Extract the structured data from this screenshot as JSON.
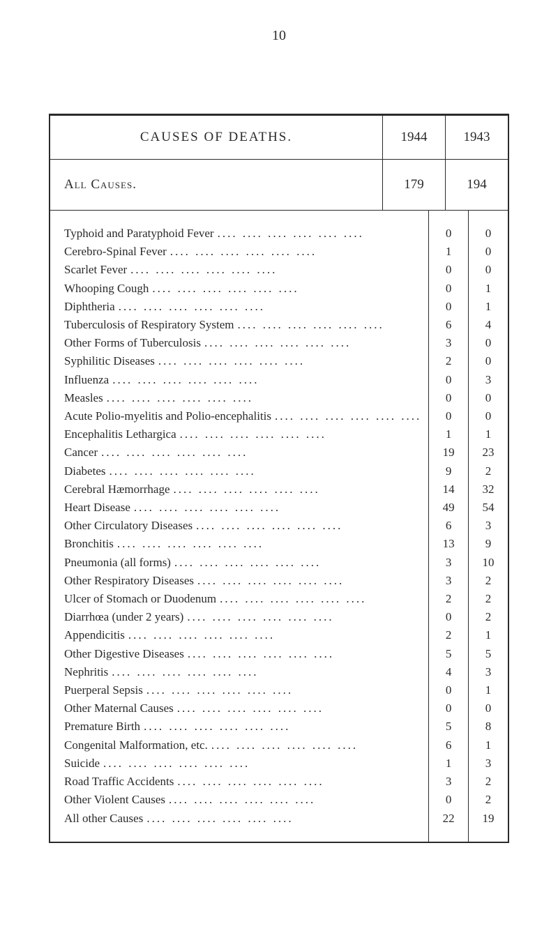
{
  "page_number": "10",
  "table": {
    "header_main": "CAUSES OF DEATHS.",
    "year1": "1944",
    "year2": "1943",
    "all_causes_label": "All Causes.",
    "all_causes_val1": "179",
    "all_causes_val2": "194",
    "rows": [
      {
        "label": "Typhoid and Paratyphoid Fever",
        "val1": "0",
        "val2": "0"
      },
      {
        "label": "Cerebro-Spinal Fever",
        "val1": "1",
        "val2": "0"
      },
      {
        "label": "Scarlet Fever",
        "val1": "0",
        "val2": "0"
      },
      {
        "label": "Whooping Cough",
        "val1": "0",
        "val2": "1"
      },
      {
        "label": "Diphtheria",
        "val1": "0",
        "val2": "1"
      },
      {
        "label": "Tuberculosis of Respiratory System",
        "val1": "6",
        "val2": "4"
      },
      {
        "label": "Other Forms of Tuberculosis",
        "val1": "3",
        "val2": "0"
      },
      {
        "label": "Syphilitic Diseases",
        "val1": "2",
        "val2": "0"
      },
      {
        "label": "Influenza",
        "val1": "0",
        "val2": "3"
      },
      {
        "label": "Measles",
        "val1": "0",
        "val2": "0"
      },
      {
        "label": "Acute Polio-myelitis and Polio-encephalitis",
        "val1": "0",
        "val2": "0"
      },
      {
        "label": "Encephalitis Lethargica",
        "val1": "1",
        "val2": "1"
      },
      {
        "label": "Cancer",
        "val1": "19",
        "val2": "23"
      },
      {
        "label": "Diabetes",
        "val1": "9",
        "val2": "2"
      },
      {
        "label": "Cerebral Hæmorrhage",
        "val1": "14",
        "val2": "32"
      },
      {
        "label": "Heart Disease",
        "val1": "49",
        "val2": "54"
      },
      {
        "label": "Other Circulatory Diseases",
        "val1": "6",
        "val2": "3"
      },
      {
        "label": "Bronchitis",
        "val1": "13",
        "val2": "9"
      },
      {
        "label": "Pneumonia (all forms)",
        "val1": "3",
        "val2": "10"
      },
      {
        "label": "Other Respiratory Diseases",
        "val1": "3",
        "val2": "2"
      },
      {
        "label": "Ulcer of Stomach or Duodenum",
        "val1": "2",
        "val2": "2"
      },
      {
        "label": "Diarrhœa (under 2 years)",
        "val1": "0",
        "val2": "2"
      },
      {
        "label": "Appendicitis",
        "val1": "2",
        "val2": "1"
      },
      {
        "label": "Other Digestive Diseases",
        "val1": "5",
        "val2": "5"
      },
      {
        "label": "Nephritis",
        "val1": "4",
        "val2": "3"
      },
      {
        "label": "Puerperal Sepsis",
        "val1": "0",
        "val2": "1"
      },
      {
        "label": "Other Maternal Causes",
        "val1": "0",
        "val2": "0"
      },
      {
        "label": "Premature Birth",
        "val1": "5",
        "val2": "8"
      },
      {
        "label": "Congenital Malformation, etc.",
        "val1": "6",
        "val2": "1"
      },
      {
        "label": "Suicide",
        "val1": "1",
        "val2": "3"
      },
      {
        "label": "Road Traffic Accidents",
        "val1": "3",
        "val2": "2"
      },
      {
        "label": "Other Violent Causes",
        "val1": "0",
        "val2": "2"
      },
      {
        "label": "All other Causes",
        "val1": "22",
        "val2": "19"
      }
    ]
  },
  "styling": {
    "background_color": "#ffffff",
    "text_color": "#2a2a2a",
    "border_color": "#2a2a2a",
    "font_family": "Georgia, Times New Roman, serif",
    "header_fontsize": 19,
    "row_fontsize": 17,
    "line_height": 26.2
  }
}
